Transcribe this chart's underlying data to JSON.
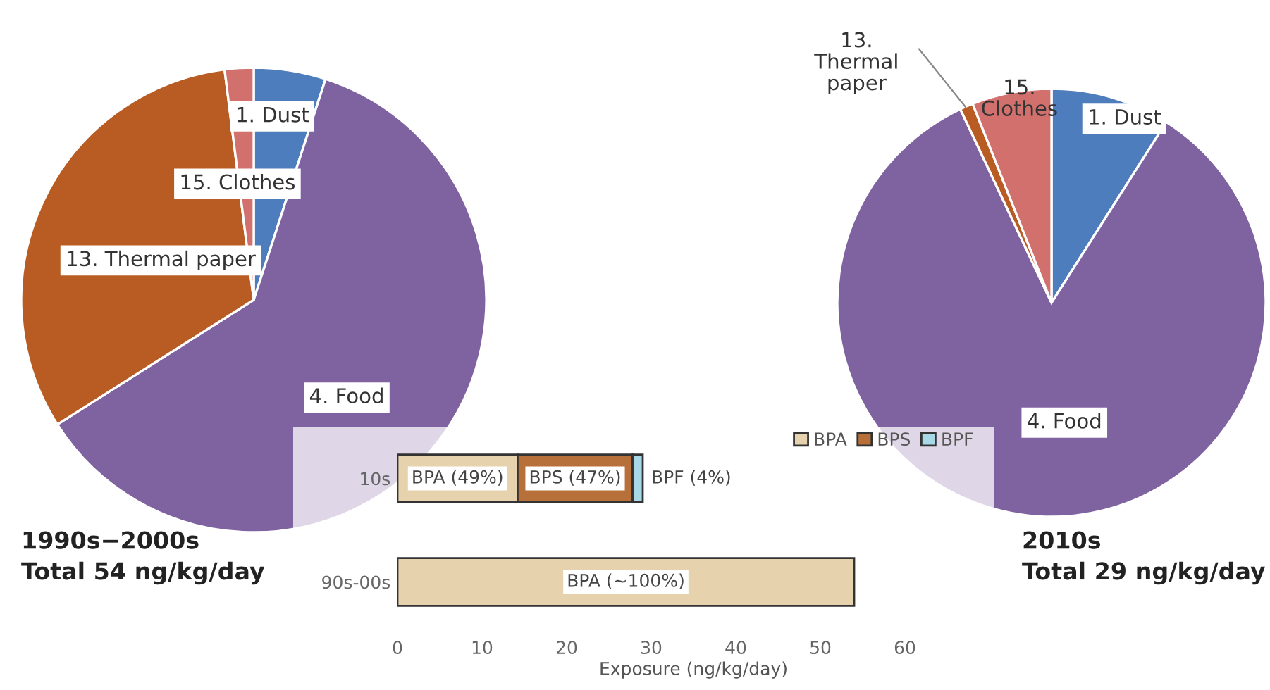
{
  "chart_data": [
    {
      "type": "pie",
      "title": "1990s−2000s",
      "subtitle": "Total 54 ng/kg/day",
      "categories": [
        "1. Dust",
        "4. Food",
        "13. Thermal paper",
        "15. Clothes"
      ],
      "values": [
        5,
        61,
        32,
        2
      ],
      "colors": [
        "#4e7dbd",
        "#7f62a0",
        "#b85c24",
        "#d2706e"
      ]
    },
    {
      "type": "pie",
      "title": "2010s",
      "subtitle": "Total 29 ng/kg/day",
      "categories": [
        "1. Dust",
        "4. Food",
        "13.\nThermal\npaper",
        "15.\nClothes"
      ],
      "values": [
        9,
        84,
        1,
        6
      ],
      "colors": [
        "#4e7dbd",
        "#7f62a0",
        "#b85c24",
        "#d2706e"
      ]
    },
    {
      "type": "bar",
      "orientation": "horizontal",
      "stacked": true,
      "categories": [
        "10s",
        "90s-00s"
      ],
      "series": [
        {
          "name": "BPA",
          "color": "#e6d3ad",
          "values": [
            14.2,
            54
          ]
        },
        {
          "name": "BPS",
          "color": "#b8703a",
          "values": [
            13.6,
            null
          ]
        },
        {
          "name": "BPF",
          "color": "#a8d8e8",
          "values": [
            1.2,
            null
          ]
        }
      ],
      "annotations": [
        "BPA (49%)",
        "BPS (47%)",
        "BPF (4%)",
        "BPA (~100%)"
      ],
      "xlabel": "Exposure (ng/kg/day)",
      "xlim": [
        0,
        70
      ],
      "xticks": [
        0,
        10,
        20,
        30,
        40,
        50,
        60
      ],
      "legend": "top right",
      "grid": false
    }
  ]
}
